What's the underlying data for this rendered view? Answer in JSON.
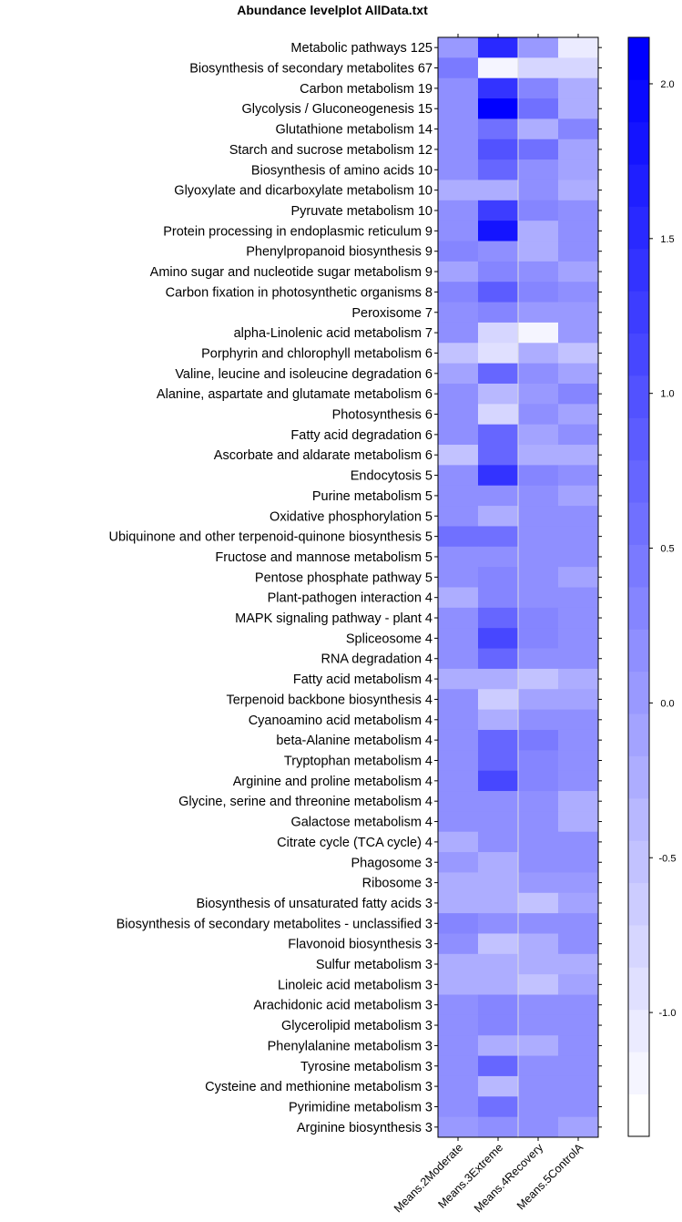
{
  "chart_data": {
    "type": "heatmap",
    "title": "Abundance levelplot AllData.txt",
    "columns": [
      "Means.2Moderate",
      "Means.3Extreme",
      "Means.4Recovery",
      "Means.5ControlA"
    ],
    "rows": [
      "Metabolic pathways 125",
      "Biosynthesis of secondary metabolites 67",
      "Carbon metabolism 19",
      "Glycolysis / Gluconeogenesis 15",
      "Glutathione metabolism 14",
      "Starch and sucrose metabolism 12",
      "Biosynthesis of amino acids 10",
      "Glyoxylate and dicarboxylate metabolism 10",
      "Pyruvate metabolism 10",
      "Protein processing in endoplasmic reticulum 9",
      "Phenylpropanoid biosynthesis 9",
      "Amino sugar and nucleotide sugar metabolism 9",
      "Carbon fixation in photosynthetic organisms 8",
      "Peroxisome 7",
      "alpha-Linolenic acid metabolism 7",
      "Porphyrin and chlorophyll metabolism 6",
      "Valine, leucine and isoleucine degradation 6",
      "Alanine, aspartate and glutamate metabolism 6",
      "Photosynthesis 6",
      "Fatty acid degradation 6",
      "Ascorbate and aldarate metabolism 6",
      "Endocytosis 5",
      "Purine metabolism 5",
      "Oxidative phosphorylation 5",
      "Ubiquinone and other terpenoid-quinone biosynthesis 5",
      "Fructose and mannose metabolism 5",
      "Pentose phosphate pathway 5",
      "Plant-pathogen interaction 4",
      "MAPK signaling pathway - plant 4",
      "Spliceosome 4",
      "RNA degradation 4",
      "Fatty acid metabolism 4",
      "Terpenoid backbone biosynthesis 4",
      "Cyanoamino acid metabolism 4",
      "beta-Alanine metabolism 4",
      "Tryptophan metabolism 4",
      "Arginine and proline metabolism 4",
      "Glycine, serine and threonine metabolism 4",
      "Galactose metabolism 4",
      "Citrate cycle (TCA cycle) 4",
      "Phagosome 3",
      "Ribosome 3",
      "Biosynthesis of unsaturated fatty acids 3",
      "Biosynthesis of secondary metabolites - unclassified 3",
      "Flavonoid biosynthesis 3",
      "Sulfur metabolism 3",
      "Linoleic acid metabolism 3",
      "Arachidonic acid metabolism 3",
      "Glycerolipid metabolism 3",
      "Phenylalanine metabolism 3",
      "Tyrosine metabolism 3",
      "Cysteine and methionine metabolism 3",
      "Pyrimidine metabolism 3",
      "Arginine biosynthesis 3"
    ],
    "values": [
      [
        0.05,
        1.6,
        0.05,
        -1.05
      ],
      [
        0.45,
        -1.3,
        -0.9,
        -0.9
      ],
      [
        0.1,
        1.5,
        0.3,
        -0.2
      ],
      [
        0.2,
        2.1,
        0.6,
        -0.2
      ],
      [
        0.1,
        0.6,
        -0.2,
        0.35
      ],
      [
        0.1,
        1.0,
        0.6,
        -0.15
      ],
      [
        0.1,
        0.8,
        0.1,
        -0.15
      ],
      [
        -0.3,
        -0.2,
        0.1,
        -0.2
      ],
      [
        0.1,
        1.3,
        0.3,
        0.1
      ],
      [
        0.1,
        1.8,
        -0.2,
        0.1
      ],
      [
        0.3,
        0.1,
        -0.2,
        0.1
      ],
      [
        -0.1,
        0.3,
        0.1,
        -0.1
      ],
      [
        0.3,
        0.9,
        0.3,
        0.2
      ],
      [
        0.1,
        0.3,
        0.0,
        0.0
      ],
      [
        0.1,
        -0.8,
        -1.2,
        0.0
      ],
      [
        -0.5,
        -0.95,
        -0.2,
        -0.5
      ],
      [
        -0.1,
        0.7,
        0.1,
        -0.1
      ],
      [
        0.2,
        -0.4,
        0.0,
        0.3
      ],
      [
        0.1,
        -0.9,
        0.1,
        -0.1
      ],
      [
        0.2,
        0.8,
        -0.1,
        0.1
      ],
      [
        -0.5,
        0.7,
        -0.2,
        -0.2
      ],
      [
        0.2,
        1.4,
        0.3,
        0.2
      ],
      [
        0.15,
        0.15,
        0.15,
        -0.15
      ],
      [
        0.15,
        -0.3,
        0.15,
        0.15
      ],
      [
        0.6,
        0.6,
        0.15,
        0.15
      ],
      [
        0.2,
        0.2,
        0.15,
        0.15
      ],
      [
        0.2,
        0.3,
        0.15,
        -0.15
      ],
      [
        -0.3,
        0.3,
        0.15,
        0.15
      ],
      [
        0.2,
        0.8,
        0.3,
        0.15
      ],
      [
        0.2,
        1.1,
        0.3,
        0.15
      ],
      [
        0.2,
        0.8,
        0.2,
        0.2
      ],
      [
        -0.3,
        -0.2,
        -0.5,
        -0.2
      ],
      [
        0.15,
        -0.7,
        -0.1,
        -0.1
      ],
      [
        0.15,
        -0.2,
        0.15,
        0.15
      ],
      [
        0.15,
        0.7,
        0.4,
        0.15
      ],
      [
        0.15,
        0.7,
        0.3,
        0.15
      ],
      [
        0.15,
        1.2,
        0.35,
        0.15
      ],
      [
        0.15,
        0.15,
        0.15,
        -0.2
      ],
      [
        0.15,
        0.15,
        0.15,
        -0.2
      ],
      [
        -0.3,
        0.15,
        0.15,
        0.15
      ],
      [
        0.0,
        -0.2,
        0.15,
        0.15
      ],
      [
        -0.2,
        -0.2,
        0.0,
        0.0
      ],
      [
        -0.2,
        -0.2,
        -0.5,
        -0.1
      ],
      [
        0.35,
        0.1,
        0.15,
        0.15
      ],
      [
        0.1,
        -0.5,
        -0.2,
        0.15
      ],
      [
        -0.2,
        -0.2,
        -0.2,
        -0.2
      ],
      [
        -0.2,
        -0.2,
        -0.5,
        -0.1
      ],
      [
        0.15,
        0.3,
        0.15,
        0.15
      ],
      [
        0.15,
        0.3,
        0.15,
        0.15
      ],
      [
        0.15,
        -0.2,
        -0.2,
        0.15
      ],
      [
        0.15,
        0.8,
        0.15,
        0.15
      ],
      [
        0.15,
        -0.4,
        0.15,
        0.15
      ],
      [
        0.15,
        0.6,
        0.15,
        0.15
      ],
      [
        -0.05,
        0.15,
        0.15,
        -0.1
      ]
    ],
    "colorbar": {
      "min": -1.4,
      "max": 2.15,
      "ticks": [
        -1.0,
        -0.5,
        0.0,
        0.5,
        1.0,
        1.5,
        2.0
      ],
      "tick_labels": [
        "-1.0",
        "-0.5",
        "0.0",
        "0.5",
        "1.0",
        "1.5",
        "2.0"
      ],
      "low_color": "#ffffff",
      "high_color": "#0000ff"
    }
  }
}
